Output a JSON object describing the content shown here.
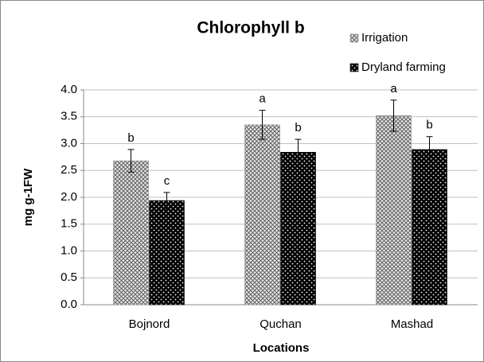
{
  "chart_data": {
    "type": "bar",
    "title": "Chlorophyll b",
    "x_label": "Locations",
    "y_label": "mg g-1FW",
    "categories": [
      "Bojnord",
      "Quchan",
      "Mashad"
    ],
    "series": [
      {
        "name": "Irrigation",
        "color": "#8c8c8c",
        "values": [
          2.68,
          3.35,
          3.52
        ],
        "errors": [
          0.21,
          0.27,
          0.29
        ],
        "letters": [
          "b",
          "a",
          "a"
        ]
      },
      {
        "name": "Dryland farming",
        "color": "#000000",
        "values": [
          1.94,
          2.84,
          2.89
        ],
        "errors": [
          0.15,
          0.24,
          0.24
        ],
        "letters": [
          "c",
          "b",
          "b"
        ]
      }
    ],
    "ylim": [
      0,
      4
    ],
    "yticks": [
      {
        "value": 0,
        "label": "0.0"
      },
      {
        "value": 0.5,
        "label": "0.5"
      },
      {
        "value": 1,
        "label": "1.0"
      },
      {
        "value": 1.5,
        "label": "1.5"
      },
      {
        "value": 2,
        "label": "2.0"
      },
      {
        "value": 2.5,
        "label": "2.5"
      },
      {
        "value": 3,
        "label": "3.0"
      },
      {
        "value": 3.5,
        "label": "3.5"
      },
      {
        "value": 4,
        "label": "4.0"
      }
    ],
    "grid": true
  }
}
